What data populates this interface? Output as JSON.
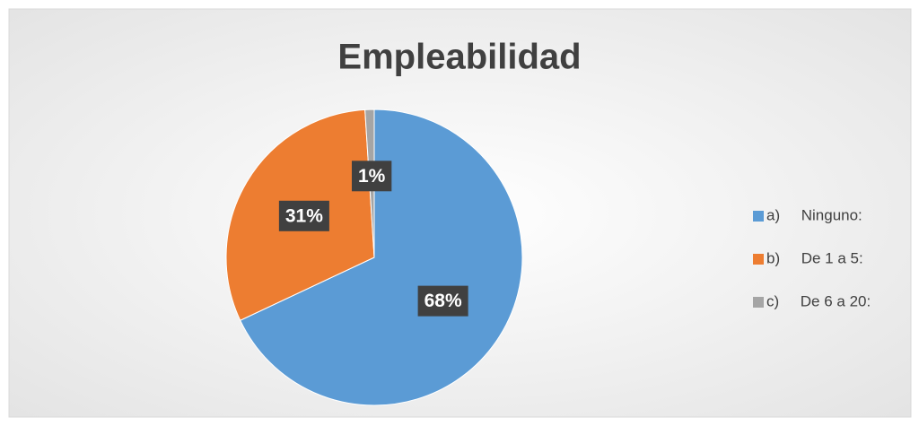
{
  "chart_data": {
    "type": "pie",
    "title": "Empleabilidad",
    "categories": [
      "a)     Ninguno:",
      "b)     De 1 a 5:",
      "c)     De 6 a 20:"
    ],
    "values": [
      68,
      31,
      1
    ],
    "value_labels": [
      "68%",
      "31%",
      "1%"
    ],
    "colors": [
      "#5b9bd5",
      "#ed7d31",
      "#a5a5a5"
    ],
    "legend": "right"
  }
}
